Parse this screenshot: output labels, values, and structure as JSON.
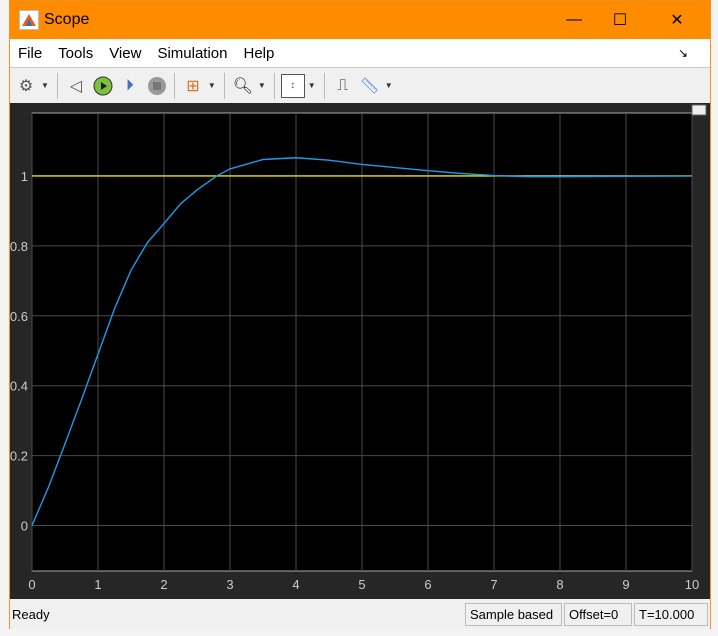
{
  "window": {
    "title": "Scope",
    "minimize": "—",
    "maximize": "☐",
    "close": "✕"
  },
  "menu": [
    "File",
    "Tools",
    "View",
    "Simulation",
    "Help"
  ],
  "toolbar": [
    "settings-icon",
    "step-back-icon",
    "run-icon",
    "step-forward-icon",
    "stop-icon",
    "signal-selector-icon",
    "zoom-in-icon",
    "scale-axes-icon",
    "triggers-icon",
    "measurements-icon"
  ],
  "status": {
    "ready": "Ready",
    "mode": "Sample based",
    "offset": "Offset=0",
    "time": "T=10.000"
  },
  "colors": {
    "title_bar": "#ff8c00",
    "plot_bg": "#000000",
    "step_signal": "#e6e600",
    "response": "#1e9be8"
  },
  "chart_data": {
    "type": "line",
    "xlim": [
      0,
      10
    ],
    "ylim": [
      -0.13,
      1.18
    ],
    "grid": true,
    "xticks": [
      "0",
      "1",
      "2",
      "3",
      "4",
      "5",
      "6",
      "7",
      "8",
      "9",
      "10"
    ],
    "yticks": [
      {
        "v": 0,
        "label": "0"
      },
      {
        "v": 0.2,
        "label": "0.2"
      },
      {
        "v": 0.4,
        "label": "0.4"
      },
      {
        "v": 0.6,
        "label": "0.6"
      },
      {
        "v": 0.8,
        "label": "0.8"
      },
      {
        "v": 1,
        "label": "1"
      }
    ],
    "series": [
      {
        "color": "#e6e600",
        "x": [
          0,
          10
        ],
        "y": [
          1,
          1
        ]
      },
      {
        "color": "#1e9be8",
        "x": [
          0,
          0.25,
          0.5,
          0.75,
          1,
          1.25,
          1.5,
          1.75,
          2,
          2.25,
          2.5,
          2.8,
          3,
          3.5,
          4,
          4.5,
          5,
          5.5,
          6,
          6.5,
          7,
          7.5,
          8,
          9,
          10
        ],
        "y": [
          0,
          0.11,
          0.234,
          0.36,
          0.49,
          0.62,
          0.73,
          0.81,
          0.864,
          0.92,
          0.96,
          1.0,
          1.02,
          1.047,
          1.052,
          1.045,
          1.033,
          1.024,
          1.015,
          1.007,
          1.001,
          0.998,
          0.998,
          0.999,
          1.0
        ]
      }
    ]
  }
}
